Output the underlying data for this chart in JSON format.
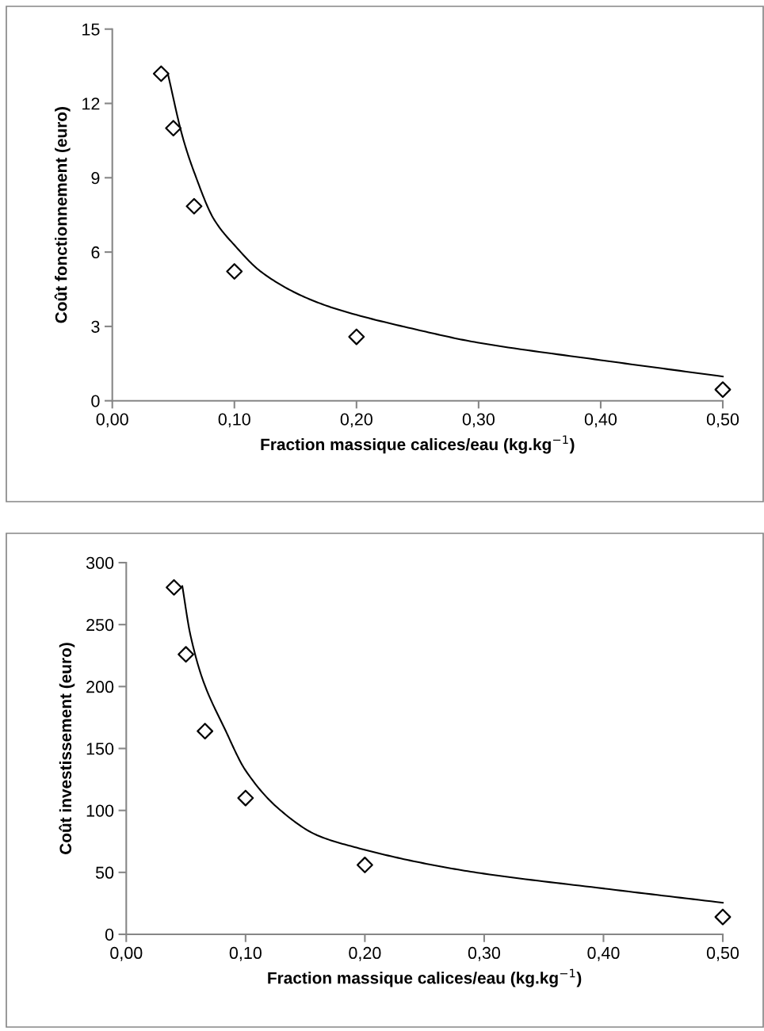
{
  "chart_data": [
    {
      "type": "scatter",
      "xlabel": "Fraction massique calices/eau (kg.kg$^{−1}$)",
      "ylabel": "Coût fonctionnement (euro)",
      "xlim": [
        0,
        0.5
      ],
      "xticks": [
        {
          "value": 0,
          "label": "0,00"
        },
        {
          "value": 0.1,
          "label": "0,10"
        },
        {
          "value": 0.2,
          "label": "0,20"
        },
        {
          "value": 0.3,
          "label": "0,30"
        },
        {
          "value": 0.4,
          "label": "0,40"
        },
        {
          "value": 0.5,
          "label": "0,50"
        }
      ],
      "ylim": [
        0,
        15
      ],
      "yticks": [
        0,
        3,
        6,
        9,
        12,
        15
      ],
      "grid": false,
      "series": [
        {
          "marker": "diamond",
          "color": "#000000",
          "x": [
            0.04,
            0.05,
            0.067,
            0.1,
            0.2,
            0.5
          ],
          "values": [
            13.2,
            11.0,
            7.85,
            5.22,
            2.58,
            0.45
          ]
        },
        {
          "type": "line",
          "marker": "none",
          "line_style": "solid",
          "color": "#000000",
          "x": [
            0.0455,
            0.0573,
            0.067,
            0.0833,
            0.1006,
            0.122,
            0.155,
            0.187,
            0.252,
            0.299,
            0.4,
            0.5
          ],
          "values": [
            13.2,
            10.7,
            9.23,
            7.32,
            6.25,
            5.2,
            4.24,
            3.65,
            2.84,
            2.35,
            1.64,
            0.98
          ]
        }
      ]
    },
    {
      "type": "scatter",
      "xlabel": "Fraction massique calices/eau (kg.kg$^{−1}$)",
      "ylabel": "Coût investissement (euro)",
      "xlim": [
        0,
        0.5
      ],
      "xticks": [
        {
          "value": 0,
          "label": "0,00"
        },
        {
          "value": 0.1,
          "label": "0,10"
        },
        {
          "value": 0.2,
          "label": "0,20"
        },
        {
          "value": 0.3,
          "label": "0,30"
        },
        {
          "value": 0.4,
          "label": "0,40"
        },
        {
          "value": 0.5,
          "label": "0,50"
        }
      ],
      "ylim": [
        0,
        300
      ],
      "yticks": [
        0,
        50,
        100,
        150,
        200,
        250,
        300
      ],
      "grid": false,
      "series": [
        {
          "marker": "diamond",
          "color": "#000000",
          "x": [
            0.04,
            0.05,
            0.066,
            0.1,
            0.2,
            0.5
          ],
          "values": [
            280,
            226,
            164,
            110,
            56,
            14
          ]
        },
        {
          "type": "line",
          "marker": "none",
          "line_style": "solid",
          "color": "#000000",
          "x": [
            0.047,
            0.0537,
            0.0647,
            0.0825,
            0.1002,
            0.127,
            0.16,
            0.193,
            0.246,
            0.2995,
            0.4,
            0.5
          ],
          "values": [
            281,
            242,
            204,
            166,
            132,
            102,
            80,
            70,
            58,
            49,
            37,
            25.5
          ]
        }
      ]
    }
  ]
}
